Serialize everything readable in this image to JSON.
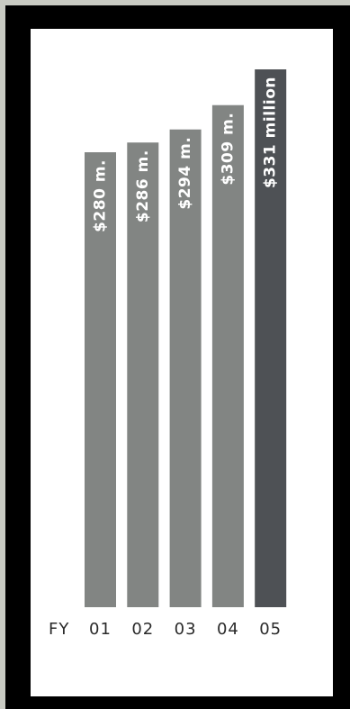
{
  "chart_data": {
    "type": "bar",
    "title": "",
    "xlabel": "",
    "ylabel": "",
    "axis_prefix": "FY",
    "categories": [
      "01",
      "02",
      "03",
      "04",
      "05"
    ],
    "values": [
      280,
      286,
      294,
      309,
      331
    ],
    "data_labels": [
      "$280 m.",
      "$286 m.",
      "$294 m.",
      "$309 m.",
      "$331 million"
    ],
    "units": "$ millions",
    "ylim": [
      0,
      331
    ],
    "grid": false,
    "legend": "none",
    "colors": {
      "bar": "#828583",
      "highlight_bar": "#4e5155",
      "bar_label": "#ffffff",
      "tick_label": "#2a2a2a",
      "frame": "#000000",
      "panel": "#ffffff",
      "page_background": "#c9cbc3"
    },
    "highlight_index": 4
  }
}
